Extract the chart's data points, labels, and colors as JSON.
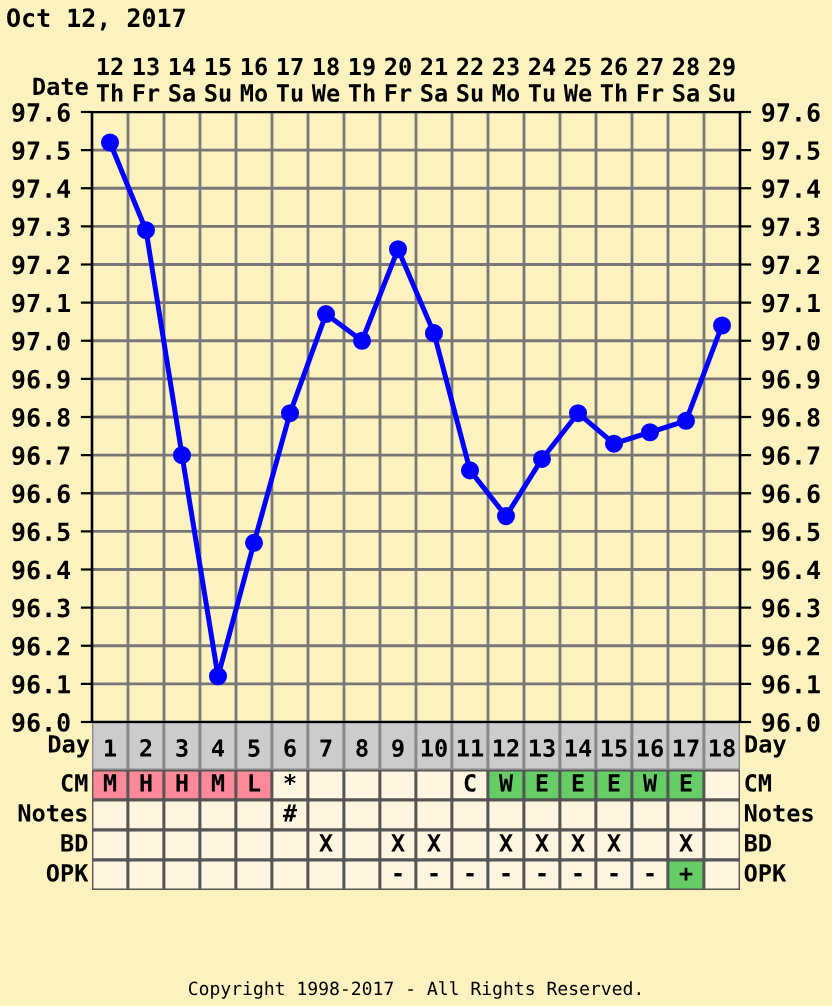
{
  "chart_data": [
    {
      "type": "line",
      "title": "Oct 12, 2017",
      "xlabel": "Day",
      "x2label": "Date",
      "x": [
        1,
        2,
        3,
        4,
        5,
        6,
        7,
        8,
        9,
        10,
        11,
        12,
        13,
        14,
        15,
        16,
        17,
        18
      ],
      "series": [
        {
          "color": "#0000ff",
          "values": [
            97.52,
            97.29,
            96.7,
            96.12,
            96.47,
            96.81,
            97.07,
            97.0,
            97.24,
            97.02,
            96.66,
            96.54,
            96.69,
            96.81,
            96.73,
            96.76,
            96.79,
            97.04
          ]
        }
      ],
      "xlim": [
        0.5,
        18.5
      ],
      "xticks": [
        1,
        2,
        3,
        4,
        5,
        6,
        7,
        8,
        9,
        10,
        11,
        12,
        13,
        14,
        15,
        16,
        17,
        18
      ],
      "x2lim": [
        "2017-10-11T12:00",
        "2017-10-29T12:00"
      ],
      "x2ticks": [
        {
          "value": "2017-10-12",
          "label": "12\nTh"
        },
        {
          "value": "2017-10-13",
          "label": "13\nFr"
        },
        {
          "value": "2017-10-14",
          "label": "14\nSa"
        },
        {
          "value": "2017-10-15",
          "label": "15\nSu"
        },
        {
          "value": "2017-10-16",
          "label": "16\nMo"
        },
        {
          "value": "2017-10-17",
          "label": "17\nTu"
        },
        {
          "value": "2017-10-18",
          "label": "18\nWe"
        },
        {
          "value": "2017-10-19",
          "label": "19\nTh"
        },
        {
          "value": "2017-10-20",
          "label": "20\nFr"
        },
        {
          "value": "2017-10-21",
          "label": "21\nSa"
        },
        {
          "value": "2017-10-22",
          "label": "22\nSu"
        },
        {
          "value": "2017-10-23",
          "label": "23\nMo"
        },
        {
          "value": "2017-10-24",
          "label": "24\nTu"
        },
        {
          "value": "2017-10-25",
          "label": "25\nWe"
        },
        {
          "value": "2017-10-26",
          "label": "26\nTh"
        },
        {
          "value": "2017-10-27",
          "label": "27\nFr"
        },
        {
          "value": "2017-10-28",
          "label": "28\nSa"
        },
        {
          "value": "2017-10-29",
          "label": "29\nSu"
        }
      ],
      "ylim": [
        96.0,
        97.6
      ],
      "yticks": [
        {
          "value": 96.0,
          "label": "96.0"
        },
        96.1,
        96.2,
        96.3,
        96.4,
        96.5,
        96.6,
        96.7,
        96.8,
        96.9,
        {
          "value": 97.0,
          "label": "97.0"
        },
        97.1,
        97.2,
        97.3,
        97.4,
        97.5,
        97.6
      ],
      "y2lim": [
        96.0,
        97.6
      ],
      "y2ticks": [
        {
          "value": 96.0,
          "label": "96.0"
        },
        96.1,
        96.2,
        96.3,
        96.4,
        96.5,
        96.6,
        96.7,
        96.8,
        96.9,
        {
          "value": 97.0,
          "label": "97.0"
        },
        97.1,
        97.2,
        97.3,
        97.4,
        97.5,
        97.6
      ],
      "grid": true,
      "marker": "circle",
      "line_style": "solid",
      "legend": false
    },
    {
      "type": "other",
      "y_categories": [
        "CM",
        "Notes",
        "BD",
        "OPK"
      ],
      "y2_categories": [
        "CM",
        "Notes",
        "BD",
        "OPK"
      ],
      "cell_labels": [
        [
          "M",
          "H",
          "H",
          "M",
          "L",
          "*",
          null,
          null,
          null,
          null,
          "C",
          "W",
          "E",
          "E",
          "E",
          "W",
          "E",
          null
        ],
        [
          null,
          null,
          null,
          null,
          null,
          "#",
          null,
          null,
          null,
          null,
          null,
          null,
          null,
          null,
          null,
          null,
          null,
          null
        ],
        [
          null,
          null,
          null,
          null,
          null,
          null,
          "X",
          null,
          "X",
          "X",
          null,
          "X",
          "X",
          "X",
          "X",
          null,
          "X",
          null
        ],
        [
          null,
          null,
          null,
          null,
          null,
          null,
          null,
          null,
          "-",
          "-",
          "-",
          "-",
          "-",
          "-",
          "-",
          "-",
          "+",
          null
        ]
      ],
      "colors": [
        [
          "#ff8899",
          "#ff8899",
          "#ff8899",
          "#ff8899",
          "#ff8899",
          "#fdf5e0",
          "#fdf5e0",
          "#fdf5e0",
          "#fdf5e0",
          "#fdf5e0",
          "#fdf5e0",
          "#66cc66",
          "#66cc66",
          "#66cc66",
          "#66cc66",
          "#66cc66",
          "#66cc66",
          "#fdf5e0"
        ],
        [
          "#fdf5e0",
          "#fdf5e0",
          "#fdf5e0",
          "#fdf5e0",
          "#fdf5e0",
          "#fdf5e0",
          "#fdf5e0",
          "#fdf5e0",
          "#fdf5e0",
          "#fdf5e0",
          "#fdf5e0",
          "#fdf5e0",
          "#fdf5e0",
          "#fdf5e0",
          "#fdf5e0",
          "#fdf5e0",
          "#fdf5e0",
          "#fdf5e0"
        ],
        [
          "#fdf5e0",
          "#fdf5e0",
          "#fdf5e0",
          "#fdf5e0",
          "#fdf5e0",
          "#fdf5e0",
          "#fdf5e0",
          "#fdf5e0",
          "#fdf5e0",
          "#fdf5e0",
          "#fdf5e0",
          "#fdf5e0",
          "#fdf5e0",
          "#fdf5e0",
          "#fdf5e0",
          "#fdf5e0",
          "#fdf5e0",
          "#fdf5e0"
        ],
        [
          "#fdf5e0",
          "#fdf5e0",
          "#fdf5e0",
          "#fdf5e0",
          "#fdf5e0",
          "#fdf5e0",
          "#fdf5e0",
          "#fdf5e0",
          "#fdf5e0",
          "#fdf5e0",
          "#fdf5e0",
          "#fdf5e0",
          "#fdf5e0",
          "#fdf5e0",
          "#fdf5e0",
          "#fdf5e0",
          "#66cc66",
          "#fdf5e0"
        ]
      ],
      "annotations": [
        "Copyright 1998-2017 - All Rights Reserved."
      ]
    }
  ]
}
